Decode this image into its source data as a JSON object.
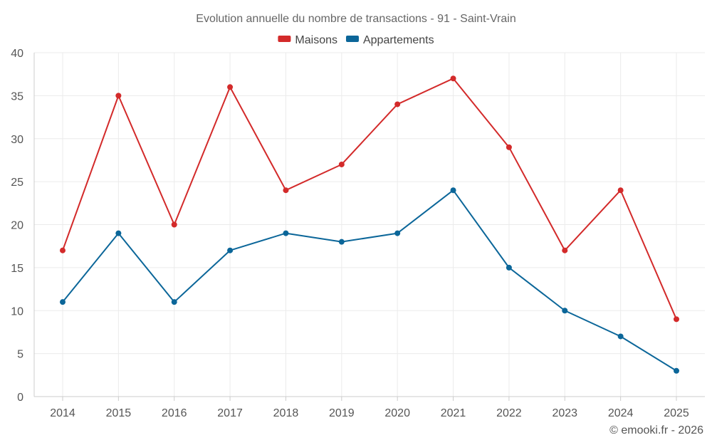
{
  "chart_data": {
    "type": "line",
    "title": "Evolution annuelle du nombre de transactions - 91 - Saint-Vrain",
    "categories": [
      "2014",
      "2015",
      "2016",
      "2017",
      "2018",
      "2019",
      "2020",
      "2021",
      "2022",
      "2023",
      "2024",
      "2025"
    ],
    "series": [
      {
        "name": "Maisons",
        "color": "#d32a2a",
        "values": [
          17,
          35,
          20,
          36,
          24,
          27,
          34,
          37,
          29,
          17,
          24,
          9
        ]
      },
      {
        "name": "Appartements",
        "color": "#0b6699",
        "values": [
          11,
          19,
          11,
          17,
          19,
          18,
          19,
          24,
          15,
          10,
          7,
          3
        ]
      }
    ],
    "ylim": [
      0,
      40
    ],
    "yticks": [
      0,
      5,
      10,
      15,
      20,
      25,
      30,
      35,
      40
    ],
    "yticklabels": [
      "0",
      "5",
      "10",
      "15",
      "20",
      "25",
      "30",
      "35",
      "40"
    ],
    "xlabel": "",
    "ylabel": "",
    "grid": true,
    "legend_position": "top-center"
  },
  "credit": "© emooki.fr - 2026"
}
